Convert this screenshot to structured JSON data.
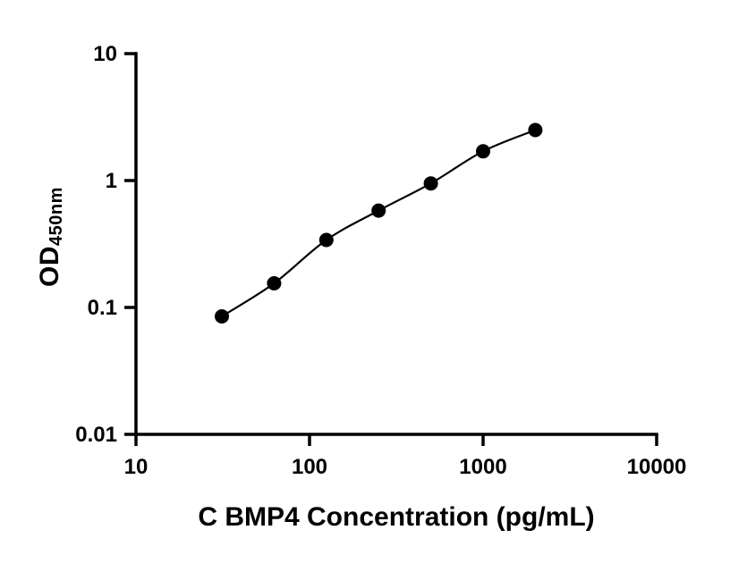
{
  "figure": {
    "background": "#ffffff"
  },
  "chart_data": {
    "type": "line",
    "title": "",
    "xlabel": "C BMP4 Concentration (pg/mL)",
    "ylabel_main": "OD",
    "ylabel_sub": "450nm",
    "xscale": "log",
    "yscale": "log",
    "xlim": [
      10,
      10000
    ],
    "ylim": [
      0.01,
      10
    ],
    "x_ticks": [
      10,
      100,
      1000,
      10000
    ],
    "y_ticks": [
      0.01,
      0.1,
      1,
      10
    ],
    "x": [
      31.25,
      62.5,
      125,
      250,
      500,
      1000,
      2000
    ],
    "y": [
      0.085,
      0.155,
      0.34,
      0.58,
      0.95,
      1.7,
      2.5
    ],
    "grid": false,
    "legend": "none",
    "marker": "circle",
    "marker_color": "#000000",
    "line_color": "#000000",
    "axis_color": "#000000"
  }
}
